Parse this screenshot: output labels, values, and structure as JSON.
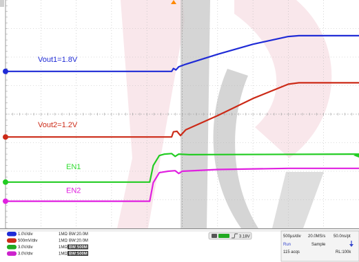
{
  "chart_data": {
    "type": "line",
    "title": "",
    "xlabel": "",
    "ylabel": "",
    "xlim": [
      0,
      10
    ],
    "ylim": [
      -4,
      4
    ],
    "grid": true,
    "divisions": {
      "x": 10,
      "y": 8
    },
    "series": [
      {
        "name": "Vout1=1.8V",
        "color": "#1f2bd6",
        "label_color": "#1f2bd6",
        "marker": "1",
        "points": [
          [
            0,
            1.5
          ],
          [
            4.7,
            1.5
          ],
          [
            4.75,
            1.6
          ],
          [
            4.82,
            1.55
          ],
          [
            4.9,
            1.66
          ],
          [
            5.1,
            1.75
          ],
          [
            6.0,
            2.1
          ],
          [
            7.0,
            2.45
          ],
          [
            8.0,
            2.72
          ],
          [
            8.3,
            2.75
          ],
          [
            10,
            2.75
          ]
        ]
      },
      {
        "name": "Vout2=1.2V",
        "color": "#cc2a17",
        "label_color": "#cc2a17",
        "marker": "2",
        "points": [
          [
            0,
            -0.8
          ],
          [
            4.7,
            -0.8
          ],
          [
            4.75,
            -0.62
          ],
          [
            4.85,
            -0.6
          ],
          [
            4.95,
            -0.75
          ],
          [
            5.1,
            -0.55
          ],
          [
            6.0,
            -0.05
          ],
          [
            7.0,
            0.55
          ],
          [
            8.0,
            1.05
          ],
          [
            8.3,
            1.1
          ],
          [
            10,
            1.1
          ]
        ]
      },
      {
        "name": "EN1",
        "color": "#22cc22",
        "label_color": "#33dd33",
        "marker": "3",
        "points": [
          [
            0,
            -2.38
          ],
          [
            4.08,
            -2.38
          ],
          [
            4.18,
            -1.8
          ],
          [
            4.35,
            -1.45
          ],
          [
            4.5,
            -1.4
          ],
          [
            4.7,
            -1.38
          ],
          [
            4.8,
            -1.48
          ],
          [
            4.9,
            -1.4
          ],
          [
            5.2,
            -1.42
          ],
          [
            10,
            -1.4
          ]
        ]
      },
      {
        "name": "EN2",
        "color": "#e020e0",
        "label_color": "#e020e0",
        "marker": "4",
        "points": [
          [
            0,
            -3.05
          ],
          [
            4.08,
            -3.05
          ],
          [
            4.18,
            -2.4
          ],
          [
            4.35,
            -2.05
          ],
          [
            4.6,
            -2.0
          ],
          [
            4.8,
            -1.98
          ],
          [
            4.9,
            -2.08
          ],
          [
            5.0,
            -2.0
          ],
          [
            6.0,
            -1.94
          ],
          [
            8.0,
            -1.9
          ],
          [
            10,
            -1.9
          ]
        ]
      }
    ],
    "trigger_marker_level": -1.45
  },
  "status_bar": {
    "channels": [
      {
        "id": "C1",
        "color": "#1f2bd6",
        "scale": "1.0V/div",
        "coupling": "1MΩ",
        "bw": "BW:20.0M",
        "bw_boxed": false
      },
      {
        "id": "C2",
        "color": "#cc2a17",
        "scale": "500mV/div",
        "coupling": "1MΩ",
        "bw": "BW:20.0M",
        "bw_boxed": false
      },
      {
        "id": "C3",
        "color": "#22aa22",
        "scale": "3.0V/div",
        "coupling": "1MΩ",
        "bw": "BW:500M",
        "bw_boxed": true
      },
      {
        "id": "C4",
        "color": "#cc22cc",
        "scale": "3.0V/div",
        "coupling": "1MΩ",
        "bw": "BW:500M",
        "bw_boxed": true
      }
    ],
    "trigger": {
      "level": "3.18V"
    },
    "timebase": {
      "time_per_div": "500µs/div",
      "sample_rate": "20.0MS/s",
      "resolution": "50.0ns/pt"
    },
    "acquisition": {
      "mode_label": "Run",
      "mode": "Sample",
      "acqs": "115 acqs",
      "record_length": "RL:100k"
    }
  }
}
